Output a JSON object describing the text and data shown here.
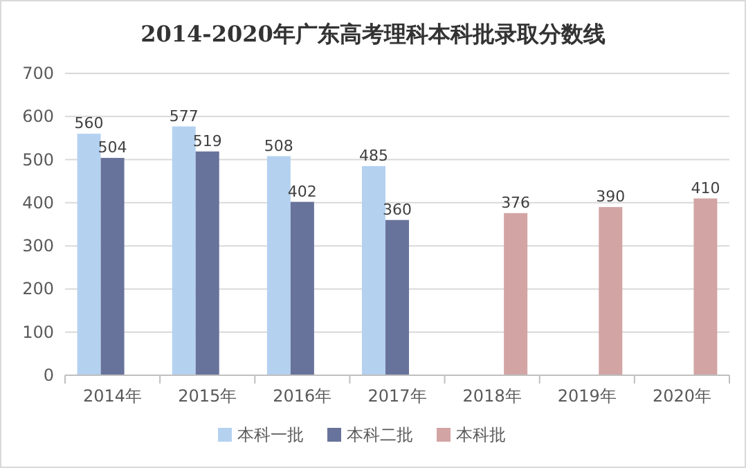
{
  "chart_data": {
    "type": "bar",
    "title": "2014-2020年广东高考理科本科批录取分数线",
    "categories": [
      "2014年",
      "2015年",
      "2016年",
      "2017年",
      "2018年",
      "2019年",
      "2020年"
    ],
    "series": [
      {
        "name": "本科一批",
        "color": "#b4d1f0",
        "values": [
          560,
          577,
          508,
          485,
          null,
          null,
          null
        ]
      },
      {
        "name": "本科二批",
        "color": "#68739b",
        "values": [
          504,
          519,
          402,
          360,
          null,
          null,
          null
        ]
      },
      {
        "name": "本科批",
        "color": "#d3a4a4",
        "values": [
          null,
          null,
          null,
          null,
          376,
          390,
          410
        ]
      }
    ],
    "ylim": [
      0,
      700
    ],
    "yticks": [
      0,
      100,
      200,
      300,
      400,
      500,
      600,
      700
    ],
    "grid": "y",
    "legend": "bottom",
    "data_labels": true
  }
}
